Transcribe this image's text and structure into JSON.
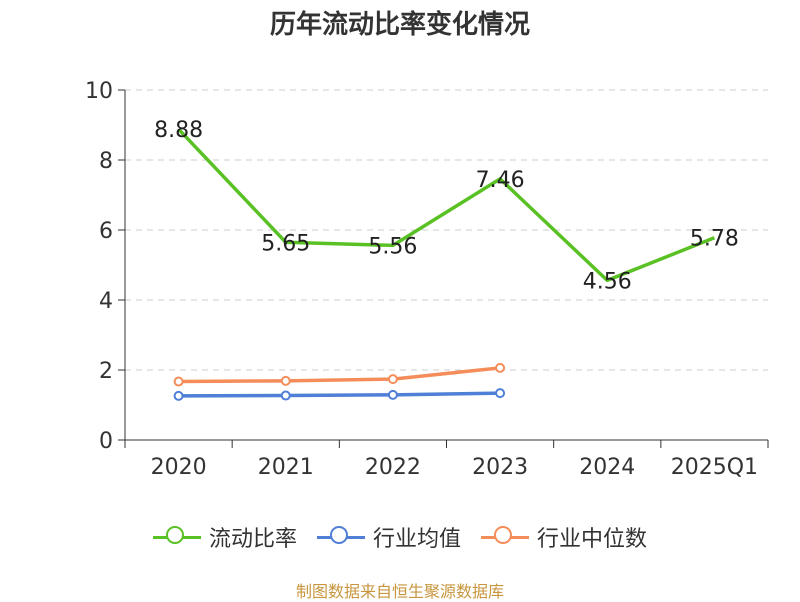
{
  "title": "历年流动比率变化情况",
  "source": "制图数据来自恒生聚源数据库",
  "chart_data": {
    "type": "line",
    "categories": [
      "2020",
      "2021",
      "2022",
      "2023",
      "2024",
      "2025Q1"
    ],
    "ylim": [
      0,
      10
    ],
    "yticks": [
      0,
      2,
      4,
      6,
      8,
      10
    ],
    "grid": true,
    "legend_position": "bottom",
    "series": [
      {
        "name": "流动比率",
        "color": "#5ac125",
        "values": [
          8.88,
          5.65,
          5.56,
          7.46,
          4.56,
          5.78
        ],
        "labels": [
          "8.88",
          "5.65",
          "5.56",
          "7.46",
          "4.56",
          "5.78"
        ]
      },
      {
        "name": "行业均值",
        "color": "#4f7fd6",
        "values": [
          1.26,
          1.27,
          1.29,
          1.34,
          null,
          null
        ]
      },
      {
        "name": "行业中位数",
        "color": "#f58d5a",
        "values": [
          1.67,
          1.69,
          1.74,
          2.06,
          null,
          null
        ]
      }
    ]
  }
}
